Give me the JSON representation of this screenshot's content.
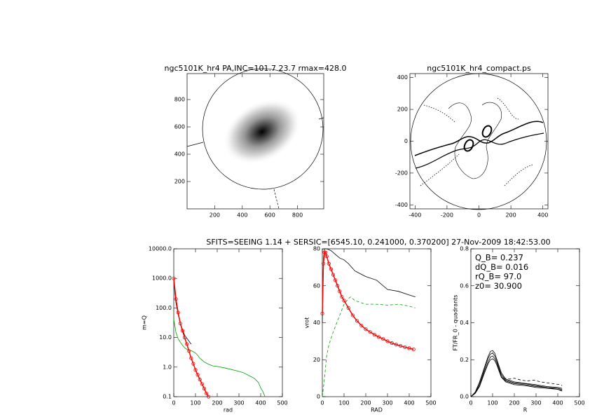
{
  "suptitle": "SFITS=SEEING 1.14 + SERSIC=[6545.10, 0.241000, 0.370200]  27-Nov-2009 18:42:53.00",
  "chart_data": [
    {
      "type": "image",
      "title": "ngc5101K_hr4 PA,INC=101.7 23.7 rmax=428.0",
      "xlim": [
        0,
        990
      ],
      "ylim": [
        0,
        990
      ],
      "xticks": [
        200,
        400,
        600,
        800
      ],
      "yticks": [
        200,
        400,
        600,
        800
      ]
    },
    {
      "type": "contour",
      "title": "ngc5101K_hr4_compact.ps",
      "xlim": [
        -432,
        432
      ],
      "ylim": [
        -425,
        425
      ],
      "xticks": [
        -400,
        -200,
        0,
        200,
        400
      ],
      "yticks": [
        -400,
        -200,
        0,
        200,
        400
      ]
    },
    {
      "type": "line",
      "xlabel": "rad",
      "ylabel": "m=Q",
      "log_y": true,
      "xlim": [
        0,
        500
      ],
      "ylim": [
        0.1,
        10000
      ],
      "xticks": [
        0,
        100,
        200,
        300,
        400,
        500
      ],
      "yticks": [
        {
          "value": 10000,
          "label": "10000.0"
        },
        {
          "value": 1000,
          "label": "1000.0"
        },
        {
          "value": 100,
          "label": "100.0"
        },
        {
          "value": 10,
          "label": "10.0"
        },
        {
          "value": 1,
          "label": "1.0"
        },
        0.1
      ],
      "series": [
        {
          "color": "#000000",
          "x": [
            0,
            5,
            10,
            20,
            30,
            50,
            80
          ],
          "values": [
            1000,
            300,
            150,
            60,
            30,
            12,
            6
          ]
        },
        {
          "color": "#00a000",
          "x": [
            0,
            5,
            10,
            20,
            30,
            40,
            50,
            60,
            70,
            80,
            90,
            100,
            110,
            120,
            140,
            160,
            180,
            200,
            230,
            260,
            290,
            320,
            350,
            370,
            390,
            400,
            410,
            420
          ],
          "values": [
            40,
            25,
            15,
            9,
            7,
            5.5,
            4.5,
            4,
            3.7,
            3.6,
            3.3,
            3,
            2.5,
            2,
            1.5,
            1.25,
            1.1,
            1.05,
            0.95,
            0.85,
            0.75,
            0.65,
            0.5,
            0.42,
            0.3,
            0.2,
            0.15,
            0.1
          ]
        },
        {
          "color": "#ff0000",
          "marker": "circle",
          "x": [
            0,
            10,
            20,
            30,
            40,
            50,
            60,
            70,
            80,
            90,
            100,
            110,
            120,
            130,
            140,
            150,
            160
          ],
          "values": [
            1000,
            200,
            70,
            30,
            17,
            10,
            6,
            3.5,
            2,
            1.3,
            0.8,
            0.55,
            0.38,
            0.27,
            0.19,
            0.13,
            0.1
          ]
        }
      ]
    },
    {
      "type": "line",
      "xlabel": "RAD",
      "ylabel": "vrot",
      "xlim": [
        0,
        500
      ],
      "ylim": [
        0,
        80
      ],
      "xticks": [
        0,
        100,
        200,
        300,
        400,
        500
      ],
      "yticks": [
        0,
        20,
        40,
        60,
        80
      ],
      "series": [
        {
          "color": "#000000",
          "x": [
            0,
            5,
            10,
            20,
            40,
            60,
            80,
            100,
            120,
            150,
            200,
            250,
            300,
            350,
            400,
            428
          ],
          "values": [
            40,
            75,
            80,
            80,
            79,
            77,
            75,
            74,
            72,
            68,
            65,
            63,
            58,
            57,
            55,
            54
          ]
        },
        {
          "color": "#00a000",
          "dash": true,
          "x": [
            0,
            10,
            20,
            30,
            50,
            80,
            100,
            120,
            130,
            150,
            200,
            250,
            300,
            350,
            400,
            428
          ],
          "values": [
            0,
            10,
            22,
            28,
            35,
            44,
            50,
            53,
            54,
            52,
            50,
            50,
            49.5,
            50,
            49,
            48
          ]
        },
        {
          "color": "#ff0000",
          "marker": "circle",
          "x": [
            0,
            5,
            10,
            15,
            20,
            30,
            40,
            50,
            60,
            70,
            80,
            90,
            100,
            120,
            140,
            160,
            180,
            200,
            220,
            240,
            260,
            280,
            300,
            320,
            340,
            360,
            380,
            400,
            420
          ],
          "values": [
            45,
            72,
            78,
            78,
            76,
            72,
            69,
            66,
            63,
            60,
            57,
            54,
            52,
            48,
            44,
            41,
            38.5,
            36.5,
            35,
            33.5,
            32.3,
            31.2,
            30,
            29,
            28.2,
            27.5,
            26.8,
            26.2,
            25.6
          ]
        }
      ]
    },
    {
      "type": "line",
      "xlabel": "R",
      "ylabel": "FT/FR_0 - quadrants",
      "xlim": [
        0,
        500
      ],
      "ylim": [
        0,
        0.8
      ],
      "xticks": [
        0,
        100,
        200,
        300,
        400,
        500
      ],
      "yticks": [
        {
          "value": 0,
          "label": "0.0"
        },
        0.2,
        0.4,
        0.6,
        0.8
      ],
      "annotations": [
        "Q_B=  0.237",
        "dQ_B=  0.016",
        "rQ_B=  97.0",
        "z0= 30.900"
      ],
      "series": [
        {
          "color": "#000000",
          "x": [
            0,
            20,
            40,
            60,
            80,
            90,
            100,
            110,
            120,
            140,
            160,
            200,
            250,
            300,
            350,
            400,
            420
          ],
          "values": [
            0,
            0.02,
            0.07,
            0.14,
            0.21,
            0.23,
            0.237,
            0.22,
            0.19,
            0.12,
            0.09,
            0.075,
            0.07,
            0.06,
            0.05,
            0.04,
            0.035
          ]
        },
        {
          "color": "#000000",
          "x": [
            0,
            20,
            40,
            60,
            80,
            90,
            100,
            110,
            120,
            140,
            160,
            200,
            250,
            300,
            350,
            400,
            420
          ],
          "values": [
            0,
            0.02,
            0.06,
            0.13,
            0.19,
            0.215,
            0.22,
            0.205,
            0.18,
            0.11,
            0.085,
            0.07,
            0.065,
            0.055,
            0.05,
            0.045,
            0.04
          ]
        },
        {
          "color": "#000000",
          "x": [
            0,
            20,
            40,
            60,
            80,
            90,
            100,
            110,
            120,
            140,
            160,
            200,
            250,
            300,
            350,
            400,
            420
          ],
          "values": [
            0,
            0.025,
            0.08,
            0.15,
            0.22,
            0.245,
            0.25,
            0.235,
            0.2,
            0.13,
            0.095,
            0.08,
            0.072,
            0.065,
            0.055,
            0.05,
            0.045
          ]
        },
        {
          "color": "#000000",
          "x": [
            0,
            20,
            40,
            60,
            80,
            90,
            100,
            110,
            120,
            140,
            160,
            200,
            250,
            300,
            350,
            400,
            420
          ],
          "values": [
            0,
            0.018,
            0.055,
            0.12,
            0.18,
            0.2,
            0.205,
            0.195,
            0.17,
            0.105,
            0.08,
            0.065,
            0.06,
            0.05,
            0.045,
            0.04,
            0.03
          ]
        },
        {
          "color": "#000000",
          "dash": true,
          "x": [
            150,
            180,
            200,
            230,
            260,
            290,
            320,
            350,
            380,
            410,
            420
          ],
          "values": [
            0.1,
            0.095,
            0.1,
            0.09,
            0.085,
            0.09,
            0.08,
            0.075,
            0.07,
            0.065,
            0.06
          ]
        }
      ]
    }
  ]
}
